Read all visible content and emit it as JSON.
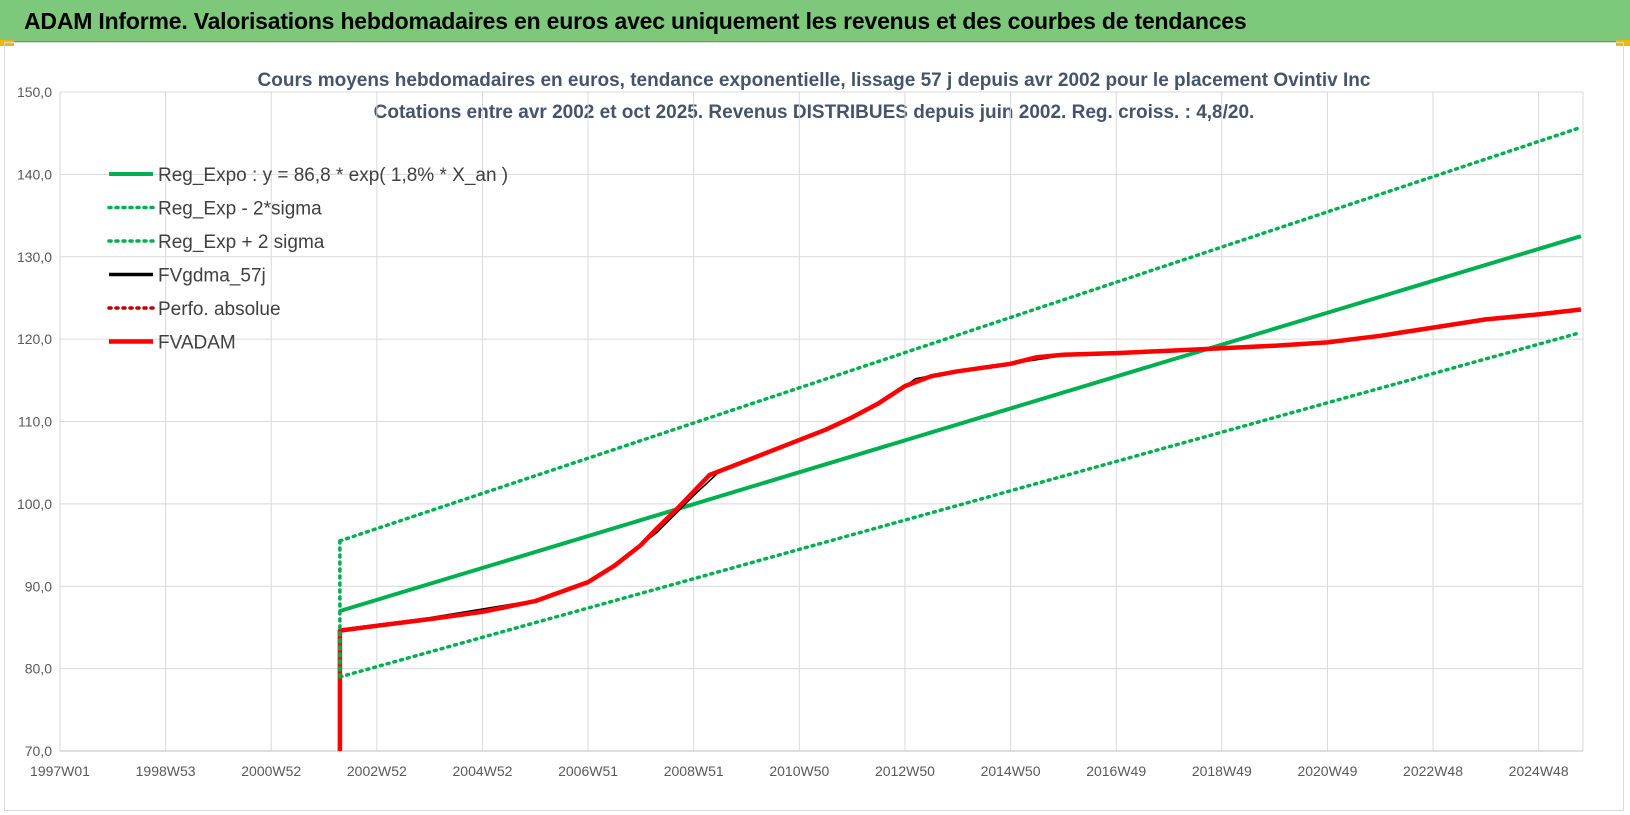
{
  "banner": {
    "title": "ADAM Informe. Valorisations hebdomadaires en euros avec uniquement les revenus et des courbes de tendances"
  },
  "colors": {
    "banner_bg": "#7dc87a",
    "trend_green": "#00b050",
    "adam_red": "#ff0000",
    "gdma_black": "#000000",
    "grid": "#d9d9d9"
  },
  "chart_data": {
    "type": "line",
    "title": "Cours moyens hebdomadaires en euros, tendance exponentielle, lissage 57 j depuis avr 2002 pour le placement Ovintiv Inc",
    "subtitle": "Cotations entre avr 2002 et oct 2025. Revenus DISTRIBUES depuis juin 2002. Reg. croiss. : 4,8/20.",
    "xlabel": "",
    "ylabel": "",
    "x_range": [
      "1997W01",
      "2025W44"
    ],
    "ylim": [
      70,
      150
    ],
    "y_ticks": [
      "70,0",
      "80,0",
      "90,0",
      "100,0",
      "110,0",
      "120,0",
      "130,0",
      "140,0",
      "150,0"
    ],
    "x_tick_labels": [
      "1997W01",
      "1998W53",
      "2000W52",
      "2002W52",
      "2004W52",
      "2006W51",
      "2008W51",
      "2010W50",
      "2012W50",
      "2014W50",
      "2016W49",
      "2018W49",
      "2020W49",
      "2022W48",
      "2024W48"
    ],
    "grid": true,
    "legend_position": "top-left",
    "series": [
      {
        "name": "Reg_Expo : y = 86,8 * exp( 1,8% *  X_an )",
        "style": "solid",
        "color": "#00b050",
        "points": [
          [
            2002.3,
            87.0
          ],
          [
            2025.8,
            132.5
          ]
        ]
      },
      {
        "name": "Reg_Exp - 2*sigma",
        "style": "dotted",
        "color": "#00b050",
        "points": [
          [
            2002.3,
            79.0
          ],
          [
            2025.8,
            120.8
          ]
        ]
      },
      {
        "name": "Reg_Exp + 2 sigma",
        "style": "dotted",
        "color": "#00b050",
        "points": [
          [
            2002.3,
            95.5
          ],
          [
            2025.8,
            145.7
          ]
        ]
      },
      {
        "name": "FVgdma_57j",
        "style": "solid",
        "color": "#000000",
        "points": [
          [
            2002.3,
            84.8
          ],
          [
            2004.0,
            86.2
          ],
          [
            2006.0,
            88.3
          ],
          [
            2007.0,
            90.5
          ],
          [
            2007.5,
            92.5
          ],
          [
            2008.3,
            96.5
          ],
          [
            2009.0,
            101.0
          ],
          [
            2009.5,
            104.0
          ],
          [
            2010.5,
            106.5
          ],
          [
            2011.5,
            109.0
          ],
          [
            2012.5,
            112.0
          ],
          [
            2013.2,
            115.2
          ],
          [
            2014.0,
            116.2
          ],
          [
            2015.0,
            117.0
          ],
          [
            2016.0,
            118.0
          ],
          [
            2018.0,
            118.5
          ],
          [
            2020.0,
            119.2
          ],
          [
            2021.0,
            119.5
          ],
          [
            2022.0,
            120.3
          ],
          [
            2023.0,
            121.3
          ],
          [
            2024.0,
            122.3
          ],
          [
            2025.8,
            123.6
          ]
        ]
      },
      {
        "name": "Perfo. absolue",
        "style": "dotted",
        "color": "#c00000",
        "points": []
      },
      {
        "name": "FVADAM",
        "style": "solid",
        "color": "#ff0000",
        "points": [
          [
            2002.3,
            70.0
          ],
          [
            2002.3,
            84.6
          ],
          [
            2003.0,
            85.2
          ],
          [
            2004.0,
            86.0
          ],
          [
            2005.0,
            86.9
          ],
          [
            2006.0,
            88.2
          ],
          [
            2007.0,
            90.5
          ],
          [
            2007.5,
            92.5
          ],
          [
            2008.0,
            95.0
          ],
          [
            2008.3,
            97.0
          ],
          [
            2008.7,
            99.5
          ],
          [
            2009.0,
            101.5
          ],
          [
            2009.3,
            103.5
          ],
          [
            2009.7,
            104.5
          ],
          [
            2010.5,
            106.5
          ],
          [
            2011.5,
            109.0
          ],
          [
            2012.0,
            110.5
          ],
          [
            2012.5,
            112.2
          ],
          [
            2013.0,
            114.3
          ],
          [
            2013.5,
            115.5
          ],
          [
            2014.0,
            116.1
          ],
          [
            2015.0,
            117.0
          ],
          [
            2015.5,
            117.8
          ],
          [
            2016.0,
            118.1
          ],
          [
            2017.0,
            118.3
          ],
          [
            2018.0,
            118.6
          ],
          [
            2019.0,
            118.9
          ],
          [
            2020.0,
            119.2
          ],
          [
            2021.0,
            119.6
          ],
          [
            2022.0,
            120.4
          ],
          [
            2023.0,
            121.4
          ],
          [
            2024.0,
            122.4
          ],
          [
            2025.0,
            123.0
          ],
          [
            2025.8,
            123.6
          ]
        ]
      }
    ]
  }
}
